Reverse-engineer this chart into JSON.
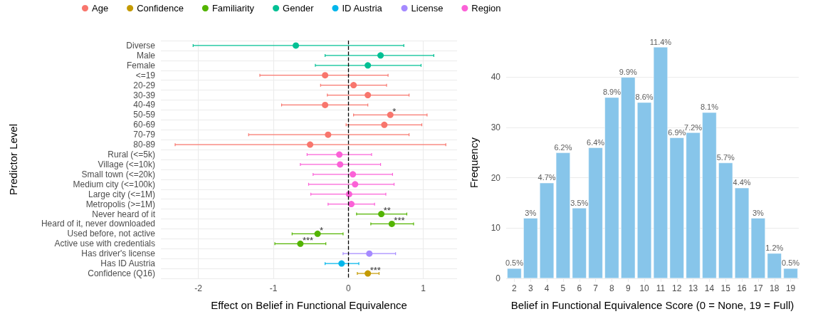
{
  "chart_data": [
    {
      "type": "scatter",
      "orientation": "horizontal",
      "xlabel": "Effect on Belief in Functional Equivalence",
      "ylabel": "Predictor Level",
      "categories": [
        "Diverse",
        "Male",
        "Female",
        "<=19",
        "20-29",
        "30-39",
        "40-49",
        "50-59",
        "60-69",
        "70-79",
        "80-89",
        "Rural (<=5k)",
        "Village (<=10k)",
        "Small town (<=20k)",
        "Medium city (<=100k)",
        "Large city (<=1M)",
        "Metropolis (>=1M)",
        "Never heard of it",
        "Heard of it, never downloaded",
        "Used before, not active",
        "Active use with credentials",
        "Has driver's license",
        "Has ID Austria",
        "Confidence (Q16)"
      ],
      "series": [
        {
          "name": "Age",
          "color": "#f8766d",
          "values": [
            null,
            null,
            null,
            -0.31,
            0.07,
            0.26,
            -0.31,
            0.56,
            0.48,
            -0.27,
            -0.51,
            null,
            null,
            null,
            null,
            null,
            null,
            null,
            null,
            null,
            null,
            null,
            null,
            null
          ],
          "errors": [
            null,
            null,
            null,
            [
              -1.18,
              0.53
            ],
            [
              -0.37,
              0.51
            ],
            [
              -0.28,
              0.81
            ],
            [
              -0.89,
              0.26
            ],
            [
              0.07,
              1.05
            ],
            [
              -0.03,
              0.98
            ],
            [
              -1.33,
              0.81
            ],
            [
              -2.31,
              1.3
            ],
            null,
            null,
            null,
            null,
            null,
            null,
            null,
            null,
            null,
            null,
            null,
            null,
            null
          ]
        },
        {
          "name": "Confidence",
          "color": "#c49a00",
          "values": [
            null,
            null,
            null,
            null,
            null,
            null,
            null,
            null,
            null,
            null,
            null,
            null,
            null,
            null,
            null,
            null,
            null,
            null,
            null,
            null,
            null,
            null,
            null,
            0.26
          ],
          "errors": [
            null,
            null,
            null,
            null,
            null,
            null,
            null,
            null,
            null,
            null,
            null,
            null,
            null,
            null,
            null,
            null,
            null,
            null,
            null,
            null,
            null,
            null,
            null,
            [
              0.12,
              0.41
            ]
          ]
        },
        {
          "name": "Familiarity",
          "color": "#53b400",
          "values": [
            null,
            null,
            null,
            null,
            null,
            null,
            null,
            null,
            null,
            null,
            null,
            null,
            null,
            null,
            null,
            null,
            null,
            0.44,
            0.58,
            -0.41,
            -0.64,
            null,
            null,
            null
          ],
          "errors": [
            null,
            null,
            null,
            null,
            null,
            null,
            null,
            null,
            null,
            null,
            null,
            null,
            null,
            null,
            null,
            null,
            null,
            [
              0.11,
              0.78
            ],
            [
              0.3,
              0.87
            ],
            [
              -0.75,
              -0.07
            ],
            [
              -0.98,
              -0.3
            ],
            null,
            null,
            null
          ]
        },
        {
          "name": "Gender",
          "color": "#00c094",
          "values": [
            -0.7,
            0.43,
            0.26,
            null,
            null,
            null,
            null,
            null,
            null,
            null,
            null,
            null,
            null,
            null,
            null,
            null,
            null,
            null,
            null,
            null,
            null,
            null,
            null,
            null
          ],
          "errors": [
            [
              -2.07,
              0.74
            ],
            [
              -0.31,
              1.14
            ],
            [
              -0.44,
              0.97
            ],
            null,
            null,
            null,
            null,
            null,
            null,
            null,
            null,
            null,
            null,
            null,
            null,
            null,
            null,
            null,
            null,
            null,
            null,
            null,
            null,
            null
          ]
        },
        {
          "name": "ID Austria",
          "color": "#00b6eb",
          "values": [
            null,
            null,
            null,
            null,
            null,
            null,
            null,
            null,
            null,
            null,
            null,
            null,
            null,
            null,
            null,
            null,
            null,
            null,
            null,
            null,
            null,
            null,
            -0.09,
            null
          ],
          "errors": [
            null,
            null,
            null,
            null,
            null,
            null,
            null,
            null,
            null,
            null,
            null,
            null,
            null,
            null,
            null,
            null,
            null,
            null,
            null,
            null,
            null,
            null,
            [
              -0.31,
              0.14
            ],
            null
          ]
        },
        {
          "name": "License",
          "color": "#a58aff",
          "values": [
            null,
            null,
            null,
            null,
            null,
            null,
            null,
            null,
            null,
            null,
            null,
            null,
            null,
            null,
            null,
            null,
            null,
            null,
            null,
            null,
            null,
            0.28,
            null,
            null
          ],
          "errors": [
            null,
            null,
            null,
            null,
            null,
            null,
            null,
            null,
            null,
            null,
            null,
            null,
            null,
            null,
            null,
            null,
            null,
            null,
            null,
            null,
            null,
            [
              -0.07,
              0.63
            ],
            null,
            null
          ]
        },
        {
          "name": "Region",
          "color": "#fb61d7",
          "values": [
            null,
            null,
            null,
            null,
            null,
            null,
            null,
            null,
            null,
            null,
            null,
            -0.12,
            -0.11,
            0.06,
            0.09,
            0.01,
            0.04,
            null,
            null,
            null,
            null,
            null,
            null,
            null
          ],
          "errors": [
            null,
            null,
            null,
            null,
            null,
            null,
            null,
            null,
            null,
            null,
            null,
            [
              -0.55,
              0.31
            ],
            [
              -0.64,
              0.43
            ],
            [
              -0.47,
              0.59
            ],
            [
              -0.53,
              0.61
            ],
            [
              -0.5,
              0.5
            ],
            [
              -0.27,
              0.35
            ],
            null,
            null,
            null,
            null,
            null,
            null,
            null
          ]
        }
      ],
      "xlim": [
        -2.5,
        1.45
      ],
      "xticks": [
        -2,
        -1,
        0,
        1
      ],
      "ref_lines": [
        {
          "axis": "x",
          "value": 0,
          "line_style": "dashed",
          "color": "#000000"
        }
      ],
      "annotations": [
        {
          "text": "*",
          "x": 0.56,
          "y": "50-59"
        },
        {
          "text": "**",
          "x": 0.44,
          "y": "Never heard of it"
        },
        {
          "text": "***",
          "x": 0.58,
          "y": "Heard of it, never downloaded"
        },
        {
          "text": "*",
          "x": -0.41,
          "y": "Used before, not active"
        },
        {
          "text": "***",
          "x": -0.64,
          "y": "Active use with credentials"
        },
        {
          "text": "***",
          "x": 0.26,
          "y": "Confidence (Q16)"
        }
      ],
      "marker": "circle",
      "grid": true,
      "legend": "top"
    },
    {
      "type": "bar",
      "xlabel": "Belief in Functional Equivalence Score (0 = None, 19 = Full)",
      "ylabel": "Frequency",
      "categories": [
        "2",
        "3",
        "4",
        "5",
        "6",
        "7",
        "8",
        "9",
        "10",
        "11",
        "12",
        "13",
        "14",
        "15",
        "16",
        "17",
        "18",
        "19"
      ],
      "values": [
        2,
        12,
        19,
        25,
        14,
        26,
        36,
        40,
        35,
        46,
        28,
        29,
        33,
        23,
        18,
        12,
        5,
        2
      ],
      "annotations": [
        {
          "text": "0.5%",
          "x": "2",
          "y": 2
        },
        {
          "text": "3%",
          "x": "3",
          "y": 12
        },
        {
          "text": "4.7%",
          "x": "4",
          "y": 19
        },
        {
          "text": "6.2%",
          "x": "5",
          "y": 25
        },
        {
          "text": "3.5%",
          "x": "6",
          "y": 14
        },
        {
          "text": "6.4%",
          "x": "7",
          "y": 26
        },
        {
          "text": "8.9%",
          "x": "8",
          "y": 36
        },
        {
          "text": "9.9%",
          "x": "9",
          "y": 40
        },
        {
          "text": "8.6%",
          "x": "10",
          "y": 35
        },
        {
          "text": "11.4%",
          "x": "11",
          "y": 46
        },
        {
          "text": "6.9%",
          "x": "12",
          "y": 28
        },
        {
          "text": "7.2%",
          "x": "13",
          "y": 29
        },
        {
          "text": "8.1%",
          "x": "14",
          "y": 33
        },
        {
          "text": "5.7%",
          "x": "15",
          "y": 23
        },
        {
          "text": "4.4%",
          "x": "16",
          "y": 18
        },
        {
          "text": "3%",
          "x": "17",
          "y": 12
        },
        {
          "text": "1.2%",
          "x": "18",
          "y": 5
        },
        {
          "text": "0.5%",
          "x": "19",
          "y": 2
        }
      ],
      "color": "#87c5ea",
      "ylim": [
        0,
        46
      ],
      "yticks": [
        0,
        10,
        20,
        30,
        40
      ],
      "grid": true
    }
  ]
}
